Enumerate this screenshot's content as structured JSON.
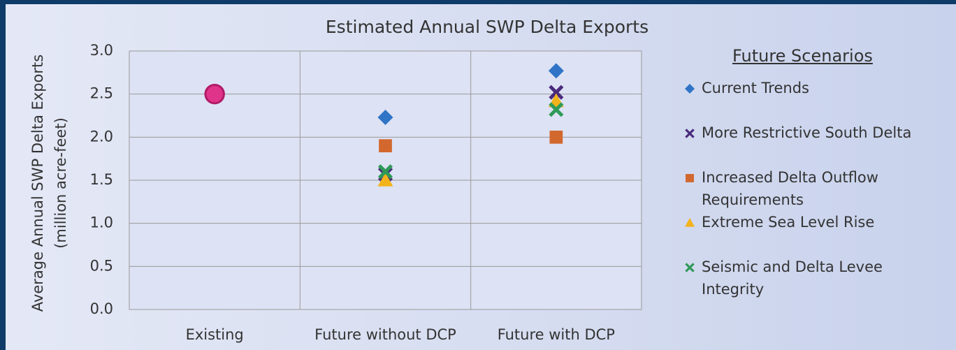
{
  "chart_data": {
    "type": "scatter",
    "title": "Estimated Annual SWP Delta Exports",
    "y_label": [
      "Average Annual SWP Delta Exports",
      "(million acre-feet)"
    ],
    "categories": [
      "Existing",
      "Future without DCP",
      "Future with DCP"
    ],
    "ylim": [
      0,
      3
    ],
    "yticks": [
      {
        "value": 0,
        "label": "0.0"
      },
      0.5,
      {
        "value": 1,
        "label": "1.0"
      },
      1.5,
      {
        "value": 2,
        "label": "2.0"
      },
      2.5,
      {
        "value": 3,
        "label": "3.0"
      }
    ],
    "grid": true,
    "legend_title": "Future Scenarios",
    "legend_position": "right",
    "series": [
      {
        "color": "#e0338a",
        "marker": "circle",
        "values": [
          2.5,
          null,
          null
        ]
      },
      {
        "name": "Current Trends",
        "color": "#2f74c6",
        "marker": "diamond",
        "values": [
          null,
          2.23,
          2.77
        ]
      },
      {
        "name": "More Restrictive South Delta",
        "color": "#4a2b7c",
        "marker": "x",
        "values": [
          null,
          1.57,
          2.52
        ]
      },
      {
        "name": "Increased Delta Outflow Requirements",
        "color": "#d2682e",
        "marker": "square",
        "values": [
          null,
          1.9,
          2.0
        ]
      },
      {
        "name": "Extreme Sea Level Rise",
        "color": "#f2b31c",
        "marker": "triangle",
        "values": [
          null,
          1.5,
          2.42
        ]
      },
      {
        "name": "Seismic and Delta Levee Integrity",
        "color": "#2f9a58",
        "marker": "x",
        "values": [
          null,
          1.6,
          2.32
        ]
      }
    ]
  }
}
